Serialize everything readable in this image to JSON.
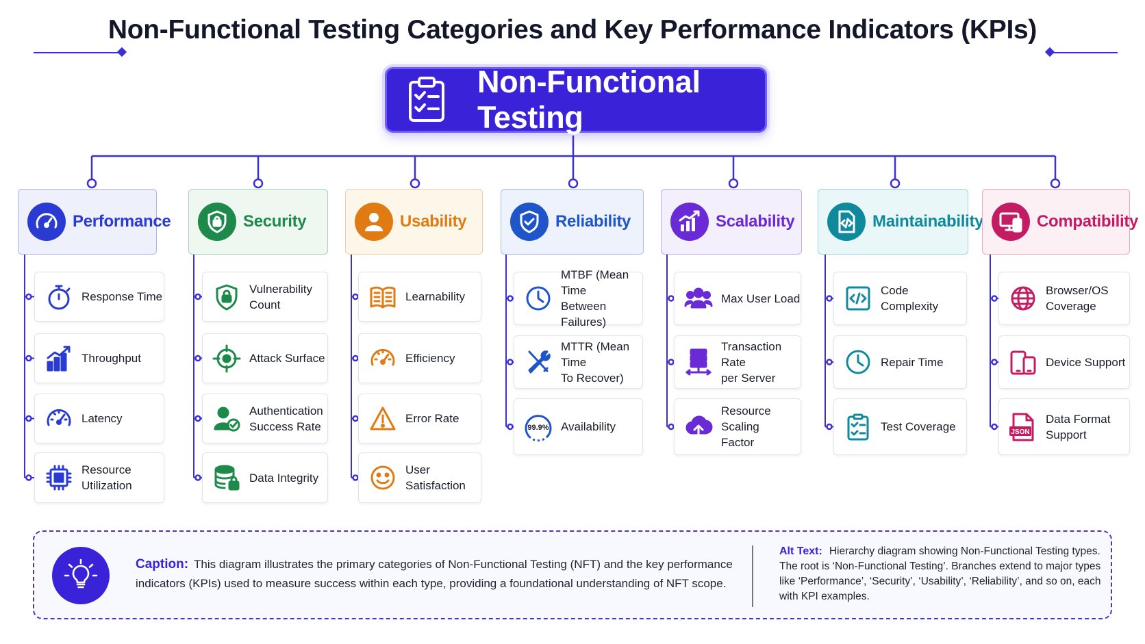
{
  "title": "Non-Functional Testing Categories and Key Performance Indicators (KPIs)",
  "root": {
    "label": "Non-Functional Testing",
    "icon": "clipboard-checklist-icon"
  },
  "categories": [
    {
      "label": "Performance",
      "icon": "speedometer-icon",
      "color": "#2a3bd1",
      "bg": "#eef0fc",
      "kpis": [
        {
          "label": "Response Time",
          "icon": "stopwatch-icon"
        },
        {
          "label": "Throughput",
          "icon": "bar-chart-up-icon"
        },
        {
          "label": "Latency",
          "icon": "gauge-icon"
        },
        {
          "label": "Resource\nUtilization",
          "icon": "cpu-chip-icon"
        }
      ]
    },
    {
      "label": "Security",
      "icon": "shield-lock-icon",
      "color": "#1d8a4c",
      "bg": "#eef7f0",
      "kpis": [
        {
          "label": "Vulnerability\nCount",
          "icon": "shield-lock-icon"
        },
        {
          "label": "Attack Surface",
          "icon": "crosshair-icon"
        },
        {
          "label": "Authentication\nSuccess Rate",
          "icon": "user-check-icon"
        },
        {
          "label": "Data Integrity",
          "icon": "database-lock-icon"
        }
      ]
    },
    {
      "label": "Usability",
      "icon": "user-icon",
      "color": "#e07b14",
      "bg": "#fdf7ea",
      "kpis": [
        {
          "label": "Learnability",
          "icon": "open-book-icon"
        },
        {
          "label": "Efficiency",
          "icon": "gauge-icon"
        },
        {
          "label": "Error Rate",
          "icon": "warning-triangle-icon"
        },
        {
          "label": "User\nSatisfaction",
          "icon": "smiley-icon"
        }
      ]
    },
    {
      "label": "Reliability",
      "icon": "shield-check-icon",
      "color": "#1f55c9",
      "bg": "#eef2fc",
      "kpis": [
        {
          "label": "MTBF (Mean Time\nBetween Failures)",
          "icon": "clock-icon"
        },
        {
          "label": "MTTR (Mean Time\nTo Recover)",
          "icon": "wrench-screwdriver-icon"
        },
        {
          "label": "Availability",
          "icon": "uptime-badge-icon",
          "badge": "99.9%"
        }
      ]
    },
    {
      "label": "Scalability",
      "icon": "growth-chart-icon",
      "color": "#6a2bd6",
      "bg": "#f3effd",
      "kpis": [
        {
          "label": "Max User Load",
          "icon": "users-group-icon"
        },
        {
          "label": "Transaction Rate\nper Server",
          "icon": "server-transfer-icon"
        },
        {
          "label": "Resource Scaling\nFactor",
          "icon": "cloud-upload-icon"
        }
      ]
    },
    {
      "label": "Maintainability",
      "icon": "code-file-icon",
      "color": "#0f8a9c",
      "bg": "#eaf7f8",
      "kpis": [
        {
          "label": "Code\nComplexity",
          "icon": "code-window-icon"
        },
        {
          "label": "Repair Time",
          "icon": "clock-icon"
        },
        {
          "label": "Test Coverage",
          "icon": "clipboard-checklist-icon"
        }
      ]
    },
    {
      "label": "Compatibility",
      "icon": "devices-icon",
      "color": "#c41c63",
      "bg": "#fcf0f5",
      "kpis": [
        {
          "label": "Browser/OS\nCoverage",
          "icon": "globe-icon"
        },
        {
          "label": "Device Support",
          "icon": "phone-tablet-icon"
        },
        {
          "label": "Data Format\nSupport",
          "icon": "json-file-icon",
          "badge": "JSON"
        }
      ]
    }
  ],
  "caption": {
    "key": "Caption:",
    "text": "This diagram illustrates the primary categories of Non-Functional Testing (NFT) and the key performance indicators (KPIs) used to measure success within each type, providing a foundational understanding of NFT scope.",
    "icon": "lightbulb-icon"
  },
  "alt_text": {
    "key": "Alt Text:",
    "text": "Hierarchy diagram showing Non-Functional Testing types. The root is ‘Non-Functional Testing’. Branches extend to major types like ‘Performance’, ‘Security’, ‘Usability’, ‘Reliability’, and so on, each with KPI examples."
  }
}
